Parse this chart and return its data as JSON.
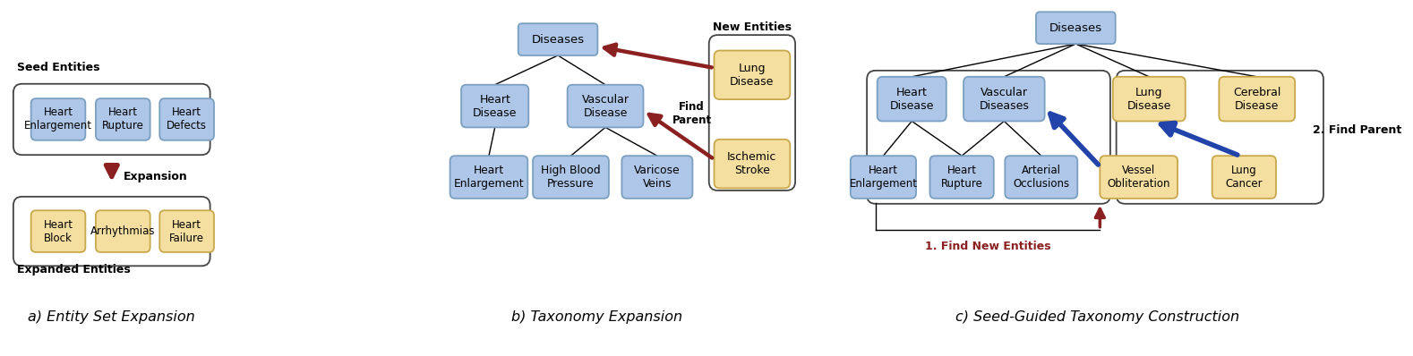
{
  "fig_width": 15.78,
  "fig_height": 3.98,
  "bg_color": "#ffffff",
  "blue_fc": "#aec6e8",
  "yellow_fc": "#f5dfa0",
  "blue_ec": "#7a9fc0",
  "yellow_ec": "#c8a84b",
  "dark_red": "#8b2020",
  "dark_blue": "#2244aa",
  "panel_a": {
    "title": "a) Entity Set Expansion",
    "seed_label": "Seed Entities",
    "expanded_label": "Expanded Entities",
    "expansion_label": "Expansion",
    "seed_nodes": [
      "Heart\nEnlargement",
      "Heart\nRupture",
      "Heart\nDefects"
    ],
    "expanded_nodes": [
      "Heart\nBlock",
      "Arrhythmias",
      "Heart\nFailure"
    ]
  },
  "panel_b": {
    "title": "b) Taxonomy Expansion",
    "new_entities_label": "New Entities",
    "find_parent_label": "Find\nParent",
    "diseases": "Diseases",
    "heart_disease": "Heart\nDisease",
    "vascular_disease": "Vascular\nDisease",
    "heart_enlargement": "Heart\nEnlargement",
    "high_blood_pressure": "High Blood\nPressure",
    "varicose_veins": "Varicose\nVeins",
    "new_nodes": [
      "Lung\nDisease",
      "Ischemic\nStroke"
    ]
  },
  "panel_c": {
    "title": "c) Seed-Guided Taxonomy Construction",
    "find_new_label": "1. Find New Entities",
    "find_parent_label": "2. Find Parent",
    "diseases": "Diseases",
    "heart_disease": "Heart\nDisease",
    "vascular_diseases": "Vascular\nDiseases",
    "lung_disease": "Lung\nDisease",
    "cerebral_disease": "Cerebral\nDisease",
    "heart_enlargement": "Heart\nEnlargement",
    "heart_rupture": "Heart\nRupture",
    "arterial_occlusions": "Arterial\nOcclusions",
    "vessel_obliteration": "Vessel\nObliteration",
    "lung_cancer": "Lung\nCancer"
  }
}
